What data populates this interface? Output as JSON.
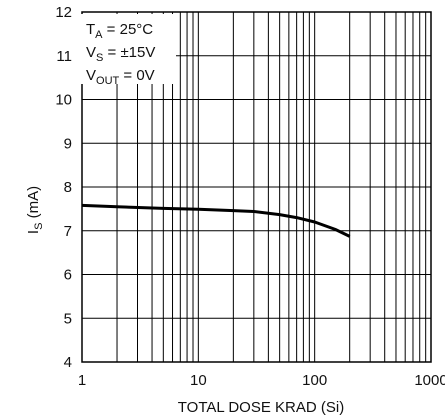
{
  "chart_data": {
    "type": "line",
    "xscale": "log",
    "xlim": [
      1,
      1000
    ],
    "ylim": [
      4,
      12
    ],
    "grid": true,
    "xlabel": "TOTAL DOSE KRAD (Si)",
    "ylabel": {
      "main": "I",
      "sub": "S",
      "unit": " (mA)"
    },
    "x_ticks": [
      1,
      10,
      100,
      1000
    ],
    "x_tick_labels": [
      "1",
      "10",
      "100",
      "1000"
    ],
    "y_ticks": [
      4,
      5,
      6,
      7,
      8,
      9,
      10,
      11,
      12
    ],
    "y_tick_labels": [
      "4",
      "5",
      "6",
      "7",
      "8",
      "9",
      "10",
      "11",
      "12"
    ],
    "annotations": [
      {
        "main": "T",
        "sub": "A",
        "rest": " = 25°C"
      },
      {
        "main": "V",
        "sub": "S",
        "rest": " = ±15V"
      },
      {
        "main": "V",
        "sub": "OUT",
        "rest": " = 0V"
      }
    ],
    "series": [
      {
        "x": [
          1,
          2,
          5,
          10,
          20,
          30,
          50,
          70,
          100,
          150,
          200
        ],
        "y": [
          7.58,
          7.55,
          7.51,
          7.49,
          7.46,
          7.44,
          7.37,
          7.3,
          7.2,
          7.03,
          6.87
        ]
      }
    ]
  }
}
